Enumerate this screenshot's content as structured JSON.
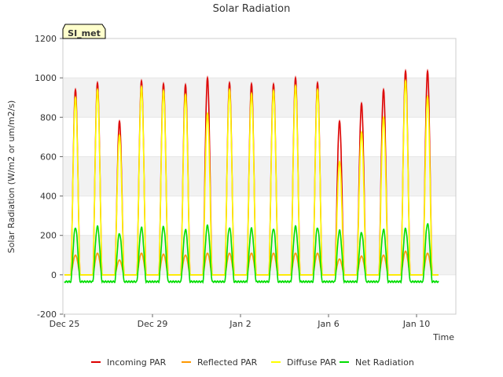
{
  "chart_data": {
    "type": "line",
    "title": "Solar Radiation",
    "xlabel": "Time",
    "ylabel": "Solar Radiation (W/m2 or um/m2/s)",
    "ylim": [
      -200,
      1200
    ],
    "yticks": [
      -200,
      0,
      200,
      400,
      600,
      800,
      1000,
      1200
    ],
    "xlim": [
      0,
      18
    ],
    "xticks": [
      {
        "value": 0,
        "label": "Dec 25"
      },
      {
        "value": 4,
        "label": "Dec 29"
      },
      {
        "value": 8,
        "label": "Jan 2"
      },
      {
        "value": 12,
        "label": "Jan 6"
      },
      {
        "value": 16,
        "label": "Jan 10"
      }
    ],
    "badge": "SI_met",
    "legend_position": "bottom",
    "day_peak_times": [
      0.5,
      1.5,
      2.5,
      3.5,
      4.5,
      5.5,
      6.5,
      7.5,
      8.5,
      9.5,
      10.5,
      11.5,
      12.5,
      13.5,
      14.5,
      15.5,
      16.5
    ],
    "series": [
      {
        "name": "Incoming PAR",
        "color": "#dd0000",
        "night": 0,
        "peaks": [
          940,
          975,
          780,
          985,
          970,
          965,
          1000,
          975,
          970,
          968,
          1000,
          975,
          780,
          870,
          940,
          1035,
          1035
        ]
      },
      {
        "name": "Reflected PAR",
        "color": "#ff9900",
        "night": 0,
        "peaks": [
          100,
          110,
          75,
          110,
          105,
          100,
          110,
          110,
          110,
          110,
          110,
          110,
          80,
          95,
          100,
          120,
          110
        ]
      },
      {
        "name": "Diffuse PAR",
        "color": "#ffff00",
        "night": 0,
        "peaks": [
          900,
          940,
          710,
          955,
          935,
          915,
          820,
          940,
          920,
          935,
          960,
          940,
          575,
          725,
          800,
          985,
          905
        ]
      },
      {
        "name": "Net Radiation",
        "color": "#00dd00",
        "night": -35,
        "peaks": [
          240,
          245,
          210,
          240,
          245,
          230,
          250,
          240,
          235,
          235,
          245,
          240,
          225,
          215,
          230,
          235,
          260
        ]
      }
    ]
  }
}
